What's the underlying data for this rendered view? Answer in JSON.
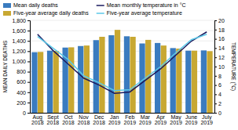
{
  "chart_data": {
    "type": "bar",
    "categories": [
      "Aug 2018",
      "Sept 2018",
      "Oct 2018",
      "Nov 2018",
      "Dec 2018",
      "Jan 2019",
      "Feb 2019",
      "Mar 2019",
      "Apr 2019",
      "May 2019",
      "June 2019",
      "July 2019"
    ],
    "ylabel": "MEAN DAILY DEATHS",
    "y2label": "TEMPERATURE (°C)",
    "ylim": [
      0,
      1800
    ],
    "yticks": [
      0,
      200,
      400,
      600,
      800,
      {
        "value": 1000,
        "label": "1,000"
      },
      {
        "value": 1200,
        "label": "1,200"
      },
      {
        "value": 1400,
        "label": "1,400"
      },
      {
        "value": 1600,
        "label": "1,600"
      },
      {
        "value": 1800,
        "label": "1,800"
      }
    ],
    "y2lim": [
      0,
      20
    ],
    "y2ticks": [
      0,
      2,
      4,
      6,
      8,
      10,
      12,
      14,
      16,
      18,
      20
    ],
    "grid": true,
    "legend": "top-left",
    "series": [
      {
        "name": "Mean daily deaths",
        "type": "bar",
        "color": "#3A7BBF",
        "values": [
          1180,
          1210,
          1270,
          1300,
          1415,
          1510,
          1490,
          1350,
          1360,
          1260,
          1210,
          1215
        ]
      },
      {
        "name": "Five-year average daily deaths",
        "type": "bar",
        "color": "#C8A832",
        "values": [
          1185,
          1205,
          1275,
          1310,
          1480,
          1615,
          1480,
          1420,
          1310,
          1250,
          1210,
          1200
        ]
      },
      {
        "name": "Mean monthly temperature in °C",
        "type": "line",
        "axis": "y2",
        "color": "#1a1a5e",
        "values": [
          17.0,
          13.5,
          10.5,
          7.5,
          6.0,
          4.2,
          4.5,
          7.0,
          9.5,
          12.5,
          15.5,
          17.5
        ]
      },
      {
        "name": "Five-year average temperature",
        "type": "line",
        "axis": "y2",
        "color": "#5BC8E8",
        "values": [
          16.5,
          14.0,
          11.5,
          8.0,
          6.5,
          4.8,
          5.0,
          7.5,
          10.0,
          13.0,
          15.8,
          17.0
        ]
      }
    ]
  }
}
